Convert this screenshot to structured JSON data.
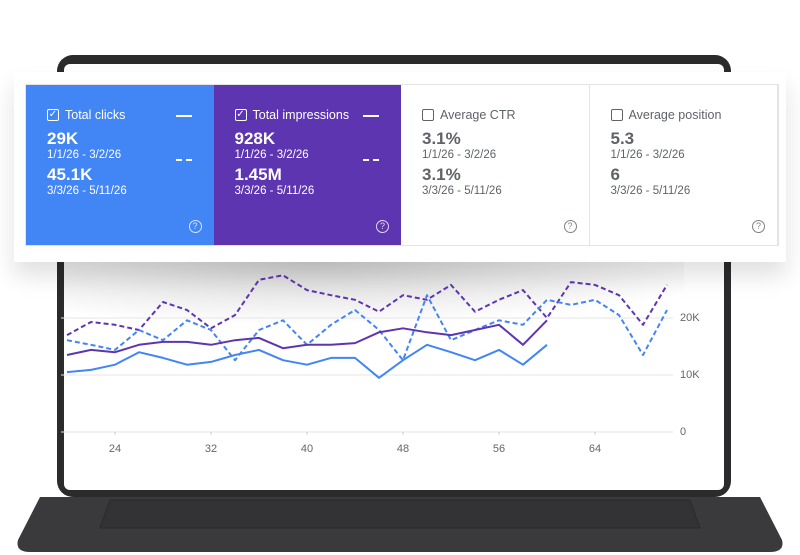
{
  "cards": [
    {
      "label": "Total clicks",
      "checked": true,
      "color": "#4285f4",
      "metrics": [
        {
          "value": "29K",
          "range": "1/1/26 - 3/2/26"
        },
        {
          "value": "45.1K",
          "range": "3/3/26 - 5/11/26"
        }
      ]
    },
    {
      "label": "Total impressions",
      "checked": true,
      "color": "#5e35b1",
      "metrics": [
        {
          "value": "928K",
          "range": "1/1/26 - 3/2/26"
        },
        {
          "value": "1.45M",
          "range": "3/3/26 - 5/11/26"
        }
      ]
    },
    {
      "label": "Average CTR",
      "checked": false,
      "metrics": [
        {
          "value": "3.1%",
          "range": "1/1/26 - 3/2/26"
        },
        {
          "value": "3.1%",
          "range": "3/3/26 - 5/11/26"
        }
      ]
    },
    {
      "label": "Average position",
      "checked": false,
      "metrics": [
        {
          "value": "5.3",
          "range": "1/1/26 - 3/2/26"
        },
        {
          "value": "6",
          "range": "3/3/26 - 5/11/26"
        }
      ]
    }
  ],
  "chart_data": {
    "type": "line",
    "x": [
      20,
      22,
      24,
      26,
      28,
      30,
      32,
      34,
      36,
      38,
      40,
      42,
      44,
      46,
      48,
      50,
      52,
      54,
      56,
      58,
      60,
      62,
      64,
      66,
      68,
      70
    ],
    "xlim": [
      19.5,
      70.5
    ],
    "xticks": [
      24,
      32,
      40,
      48,
      56,
      64
    ],
    "ylim": [
      0,
      28000
    ],
    "yticks": [
      0,
      {
        "value": 10000,
        "label": "10K"
      },
      {
        "value": 20000,
        "label": "20K"
      }
    ],
    "grid": true,
    "series": [
      {
        "color": "#5e35b1",
        "dashed": true,
        "values": [
          17000,
          19300,
          18800,
          17900,
          22800,
          21400,
          18200,
          20500,
          26700,
          27500,
          24900,
          24000,
          23200,
          21100,
          24000,
          23200,
          25800,
          21100,
          23200,
          24900,
          20000,
          26300,
          25800,
          24000,
          18800,
          25800
        ]
      },
      {
        "color": "#4285f4",
        "dashed": true,
        "values": [
          16100,
          15300,
          14400,
          17900,
          16100,
          19600,
          17900,
          12600,
          17900,
          19600,
          15300,
          18800,
          21400,
          17900,
          12600,
          24000,
          16100,
          17900,
          19600,
          18800,
          23200,
          22300,
          23200,
          20500,
          13500,
          21400
        ]
      },
      {
        "color": "#5e35b1",
        "dashed": false,
        "values": [
          13500,
          14400,
          14000,
          15300,
          15800,
          15800,
          15300,
          16100,
          16500,
          14700,
          15300,
          15300,
          15600,
          17500,
          18200,
          17500,
          17000,
          17900,
          18800,
          15300,
          19600,
          null,
          null,
          null,
          null,
          null
        ]
      },
      {
        "color": "#4285f4",
        "dashed": false,
        "values": [
          10500,
          10900,
          11800,
          14000,
          13000,
          11800,
          12300,
          13500,
          14400,
          12600,
          11800,
          13000,
          13000,
          9500,
          12600,
          15300,
          14000,
          12600,
          14400,
          11800,
          15300,
          null,
          null,
          null,
          null,
          null
        ]
      }
    ]
  }
}
